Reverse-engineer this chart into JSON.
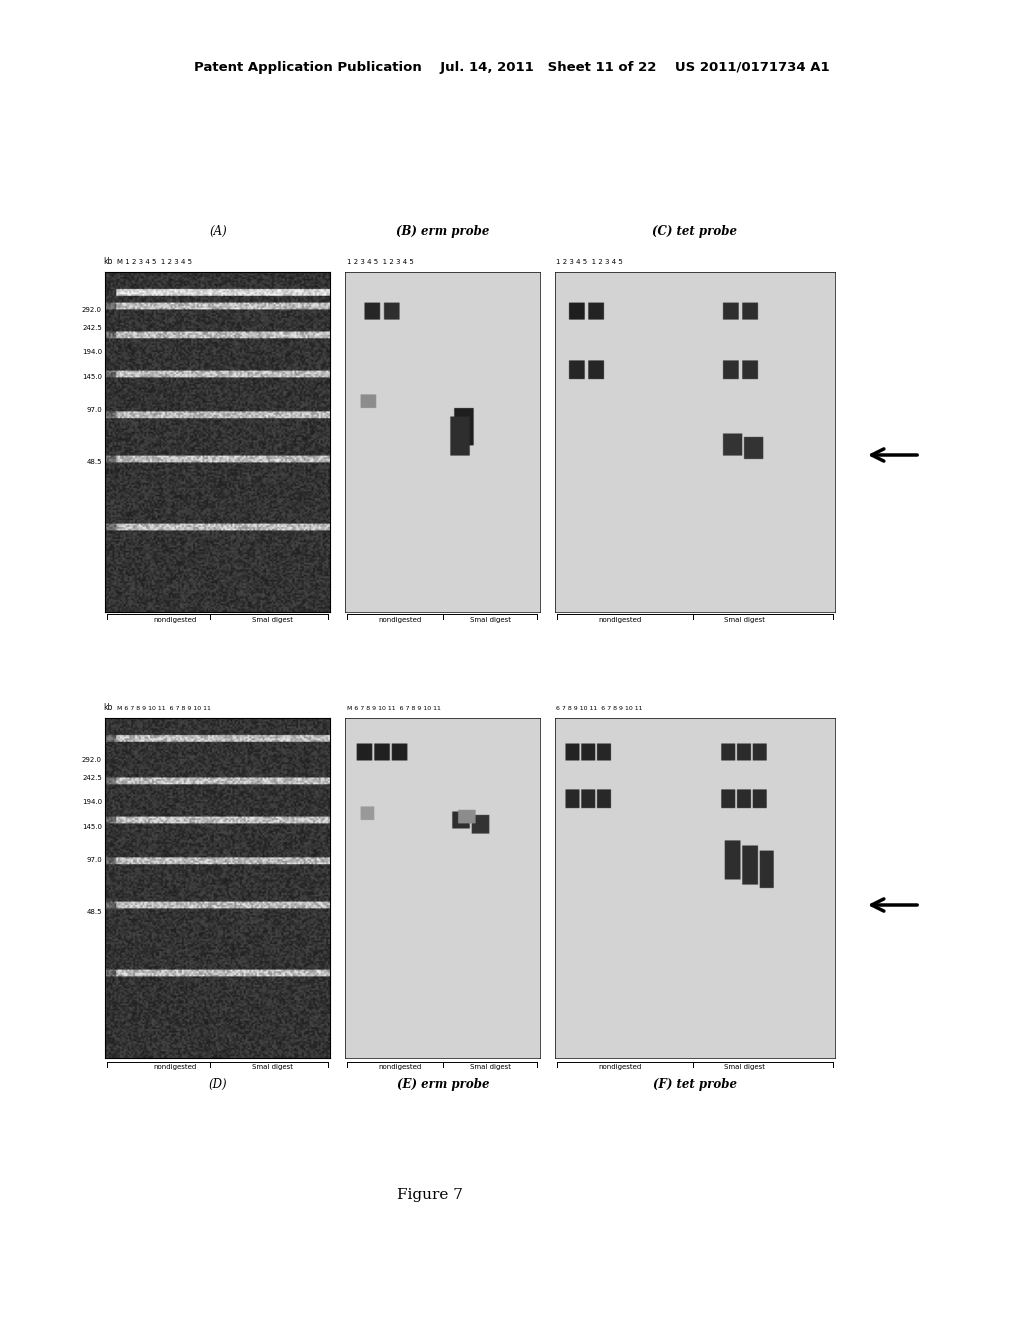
{
  "background_color": "#ffffff",
  "header_text": "Patent Application Publication    Jul. 14, 2011   Sheet 11 of 22    US 2011/0171734 A1",
  "figure_caption": "Figure 7",
  "panel_labels_top": [
    "(A)",
    "(B) erm probe",
    "(C) tet probe"
  ],
  "panel_labels_bottom": [
    "(D)",
    "(E) erm probe",
    "(F) tet probe"
  ],
  "marker_labels_top": [
    "292.0",
    "242.5",
    "194.0",
    "145.0",
    "97.0",
    "48.5"
  ],
  "marker_labels_bottom": [
    "292.0",
    "242.5",
    "194.0",
    "145.0",
    "97.0",
    "48.5"
  ]
}
